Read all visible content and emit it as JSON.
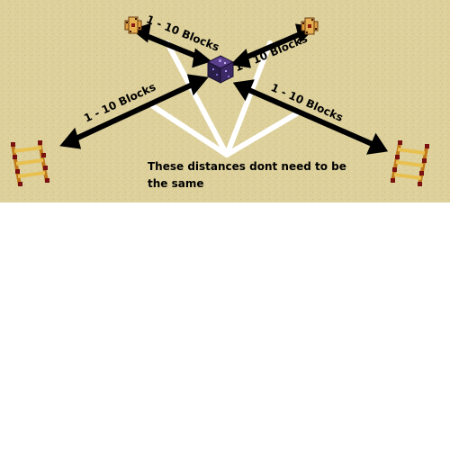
{
  "scene": {
    "ground_color": "#ddd09b",
    "arrow_color": "#000000",
    "pointer_line_color": "#ffffff",
    "labels": {
      "top_left": "1 - 10 Blocks",
      "top_right": "1 - 10 Blocks",
      "left": "1 - 10 Blocks",
      "right": "1 - 10 Blocks"
    },
    "note": "These distances dont need to be the same",
    "objects": {
      "center_block": "ender-block-icon",
      "top_left_node": "redstone-node-icon",
      "top_right_node": "redstone-node-icon",
      "left_ladder": "rail-ladder-icon",
      "right_ladder": "rail-ladder-icon"
    }
  }
}
